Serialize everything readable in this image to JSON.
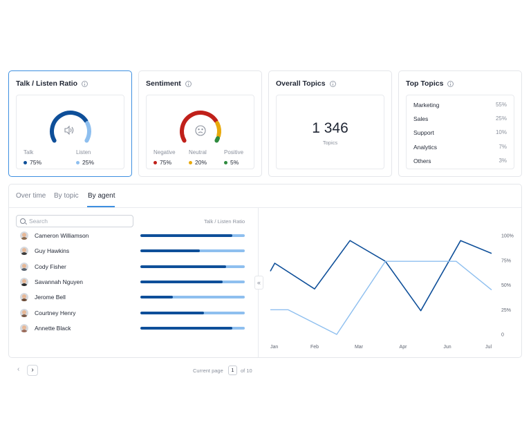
{
  "cards": {
    "talk_listen": {
      "title": "Talk / Listen Ratio",
      "icon": "speaker-icon",
      "talk": {
        "label": "Talk",
        "value": "75%",
        "color": "#0e4f99"
      },
      "listen": {
        "label": "Listen",
        "value": "25%",
        "color": "#8ebfef"
      }
    },
    "sentiment": {
      "title": "Sentiment",
      "icon": "sad-face-icon",
      "negative": {
        "label": "Negative",
        "value": "75%",
        "color": "#c0201a"
      },
      "neutral": {
        "label": "Neutral",
        "value": "20%",
        "color": "#e8a90c"
      },
      "positive": {
        "label": "Positive",
        "value": "5%",
        "color": "#2e8b3e"
      }
    },
    "overall_topics": {
      "title": "Overall Topics",
      "value": "1 346",
      "sub": "Topics"
    },
    "top_topics": {
      "title": "Top Topics",
      "items": [
        {
          "name": "Marketing",
          "pct": "55%"
        },
        {
          "name": "Sales",
          "pct": "25%"
        },
        {
          "name": "Support",
          "pct": "10%"
        },
        {
          "name": "Analytics",
          "pct": "7%"
        },
        {
          "name": "Others",
          "pct": "3%"
        }
      ]
    }
  },
  "tabs": [
    {
      "label": "Over time"
    },
    {
      "label": "By topic"
    },
    {
      "label": "By agent"
    }
  ],
  "active_tab": "By agent",
  "search": {
    "placeholder": "Search",
    "value": ""
  },
  "column_header": "Talk / Listen Ratio",
  "agents": [
    {
      "name": "Cameron Williamson",
      "talk_ratio": 0.88,
      "shirt": "#8a6b4f"
    },
    {
      "name": "Guy Hawkins",
      "talk_ratio": 0.57,
      "shirt": "#3b3b3b"
    },
    {
      "name": "Cody Fisher",
      "talk_ratio": 0.82,
      "shirt": "#5a6470"
    },
    {
      "name": "Savannah Nguyen",
      "talk_ratio": 0.79,
      "shirt": "#2c2c2c"
    },
    {
      "name": "Jerome Bell",
      "talk_ratio": 0.31,
      "shirt": "#6b4a35"
    },
    {
      "name": "Courtney Henry",
      "talk_ratio": 0.61,
      "shirt": "#7a5a48"
    },
    {
      "name": "Annette Black",
      "talk_ratio": 0.88,
      "shirt": "#9b6b5a"
    }
  ],
  "pagination": {
    "prev": "‹",
    "next": "›",
    "label": "Current page",
    "current": "1",
    "of": "of 10"
  },
  "collapse_icon": "«",
  "chart_data": {
    "type": "line",
    "x": [
      "Jan",
      "Feb",
      "Mar",
      "Apr",
      "Jun",
      "Jul"
    ],
    "y_ticks": [
      "0",
      "25%",
      "50%",
      "75%",
      "100%"
    ],
    "ylim": [
      0,
      100
    ],
    "grid": false,
    "series": [
      {
        "color": "#0e4f99",
        "points": [
          [
            0,
            64
          ],
          [
            0.1,
            72
          ],
          [
            1,
            46
          ],
          [
            1.8,
            95
          ],
          [
            2.6,
            74
          ],
          [
            3.4,
            24
          ],
          [
            4.3,
            95
          ],
          [
            5,
            82
          ]
        ]
      },
      {
        "color": "#8ebfef",
        "points": [
          [
            0,
            25
          ],
          [
            0.4,
            25
          ],
          [
            1.5,
            0
          ],
          [
            2.6,
            74
          ],
          [
            4.2,
            74
          ],
          [
            5,
            45
          ]
        ]
      }
    ]
  }
}
